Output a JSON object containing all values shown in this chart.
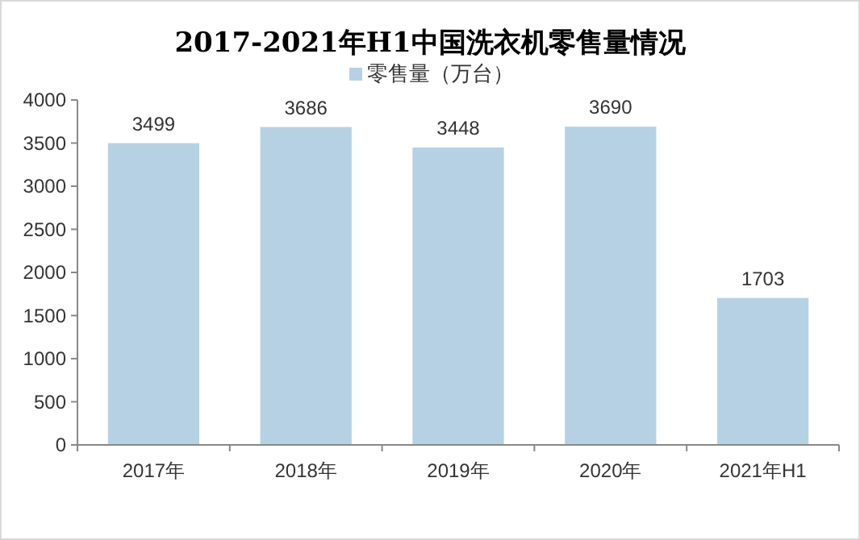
{
  "chart_data": {
    "type": "bar",
    "title": "2017-2021年H1中国洗衣机零售量情况",
    "categories": [
      "2017年",
      "2018年",
      "2019年",
      "2020年",
      "2021年H1"
    ],
    "series": [
      {
        "name": "零售量（万台）",
        "color": "#b7d1e4",
        "values": [
          3499,
          3686,
          3448,
          3690,
          1703
        ]
      }
    ],
    "ylim": [
      0,
      4000
    ],
    "yticks": [
      0,
      500,
      1000,
      1500,
      2000,
      2500,
      3000,
      3500,
      4000
    ],
    "data_labels": true,
    "legend": "top",
    "grid": false
  }
}
